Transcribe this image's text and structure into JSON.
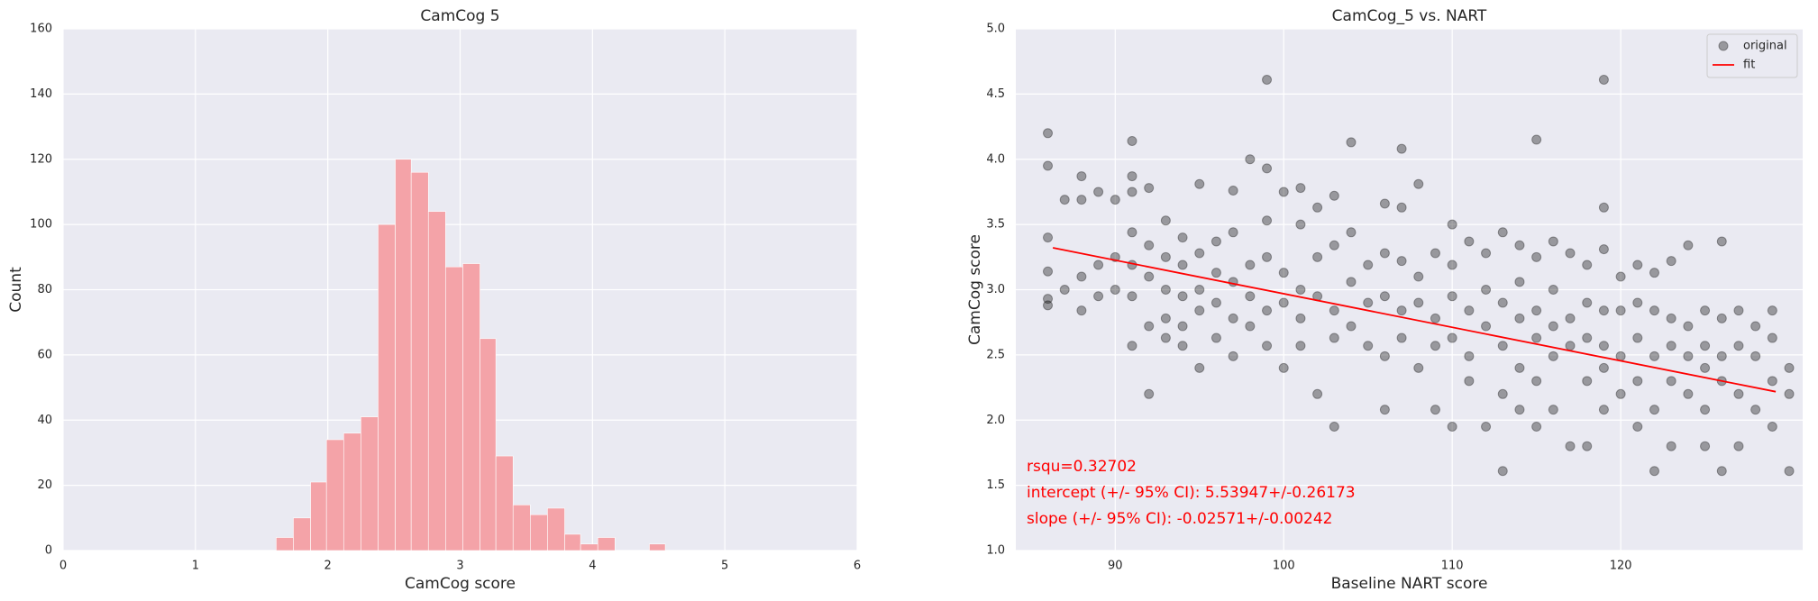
{
  "chart_data": [
    {
      "type": "histogram",
      "title": "CamCog 5",
      "x_label": "CamCog score",
      "y_label": "Count",
      "bins": [
        1.61,
        1.74,
        1.87,
        1.99,
        2.12,
        2.25,
        2.38,
        2.51,
        2.63,
        2.76,
        2.89,
        3.02,
        3.15,
        3.27,
        3.4,
        3.53,
        3.66,
        3.79,
        3.91,
        4.04,
        4.17,
        4.3,
        4.43,
        4.55
      ],
      "values": [
        4,
        10,
        21,
        34,
        36,
        41,
        100,
        120,
        116,
        104,
        87,
        88,
        65,
        29,
        14,
        11,
        13,
        5,
        2,
        4,
        0,
        0,
        2
      ],
      "color": "#f4a3a8",
      "xlim": [
        0,
        6
      ],
      "xticks": [
        0,
        1,
        2,
        3,
        4,
        5,
        6
      ],
      "ylim": [
        0,
        160
      ],
      "yticks": [
        0,
        20,
        40,
        60,
        80,
        100,
        120,
        140,
        160
      ],
      "grid": true
    },
    {
      "type": "scatter",
      "title": "CamCog_5 vs. NART",
      "x_label": "Baseline NART score",
      "y_label": "CamCog score",
      "xlim": [
        84.1,
        130.8
      ],
      "xticks": [
        90,
        100,
        110,
        120
      ],
      "ylim": [
        1,
        5
      ],
      "yticks": [
        {
          "value": 1,
          "label": "1.0"
        },
        1.5,
        {
          "value": 2,
          "label": "2.0"
        },
        2.5,
        {
          "value": 3,
          "label": "3.0"
        },
        3.5,
        {
          "value": 4,
          "label": "4.0"
        },
        4.5,
        {
          "value": 5,
          "label": "5.0"
        }
      ],
      "grid": true,
      "legend": "upper right",
      "annotations": [
        "rsqu=0.32702",
        "intercept (+/- 95% CI): 5.53947+/-0.26173",
        "slope (+/- 95% CI): -0.02571+/-0.00242"
      ],
      "annotation_color": "#ff0000",
      "series": [
        {
          "name": "original",
          "mode": "markers",
          "color": "#000000",
          "alpha": 0.35,
          "x": [
            86,
            86,
            86,
            86,
            86,
            86,
            87,
            87,
            88,
            88,
            88,
            88,
            89,
            89,
            89,
            90,
            90,
            90,
            91,
            91,
            91,
            91,
            91,
            91,
            91,
            92,
            92,
            92,
            92,
            92,
            93,
            93,
            93,
            93,
            93,
            94,
            94,
            94,
            94,
            94,
            95,
            95,
            95,
            95,
            95,
            96,
            96,
            96,
            96,
            97,
            97,
            97,
            97,
            97,
            98,
            98,
            98,
            98,
            99,
            99,
            99,
            99,
            99,
            99,
            100,
            100,
            100,
            100,
            101,
            101,
            101,
            101,
            101,
            102,
            102,
            102,
            102,
            103,
            103,
            103,
            103,
            103,
            104,
            104,
            104,
            104,
            105,
            105,
            105,
            106,
            106,
            106,
            106,
            106,
            107,
            107,
            107,
            107,
            107,
            108,
            108,
            108,
            108,
            109,
            109,
            109,
            109,
            110,
            110,
            110,
            110,
            110,
            111,
            111,
            111,
            111,
            112,
            112,
            112,
            112,
            113,
            113,
            113,
            113,
            113,
            114,
            114,
            114,
            114,
            114,
            115,
            115,
            115,
            115,
            115,
            115,
            116,
            116,
            116,
            116,
            116,
            117,
            117,
            117,
            117,
            118,
            118,
            118,
            118,
            118,
            119,
            119,
            119,
            119,
            119,
            119,
            119,
            120,
            120,
            120,
            120,
            121,
            121,
            121,
            121,
            121,
            122,
            122,
            122,
            122,
            122,
            123,
            123,
            123,
            123,
            123,
            124,
            124,
            124,
            124,
            125,
            125,
            125,
            125,
            125,
            126,
            126,
            126,
            126,
            126,
            127,
            127,
            127,
            127,
            128,
            128,
            128,
            129,
            129,
            129,
            129,
            130,
            130,
            130
          ],
          "values": [
            4.2,
            3.95,
            3.4,
            3.14,
            2.93,
            2.88,
            3.69,
            3.0,
            3.87,
            3.69,
            3.1,
            2.84,
            3.75,
            3.19,
            2.95,
            3.69,
            3.25,
            3.0,
            4.14,
            3.87,
            3.75,
            3.44,
            3.19,
            2.95,
            2.57,
            3.78,
            3.34,
            3.1,
            2.72,
            2.2,
            3.53,
            3.25,
            3.0,
            2.78,
            2.63,
            3.4,
            3.19,
            2.95,
            2.72,
            2.57,
            3.81,
            3.28,
            3.0,
            2.84,
            2.4,
            3.37,
            3.13,
            2.9,
            2.63,
            3.76,
            3.44,
            3.06,
            2.78,
            2.49,
            4.0,
            3.19,
            2.95,
            2.72,
            4.61,
            3.93,
            3.53,
            3.25,
            2.84,
            2.57,
            3.75,
            3.13,
            2.9,
            2.4,
            3.78,
            3.5,
            3.0,
            2.78,
            2.57,
            3.63,
            3.25,
            2.95,
            2.2,
            3.72,
            3.34,
            2.84,
            2.63,
            1.95,
            4.13,
            3.44,
            3.06,
            2.72,
            3.19,
            2.9,
            2.57,
            3.66,
            3.28,
            2.95,
            2.49,
            2.08,
            4.08,
            3.63,
            3.22,
            2.84,
            2.63,
            3.81,
            3.1,
            2.9,
            2.4,
            3.28,
            2.78,
            2.57,
            2.08,
            3.5,
            3.19,
            2.95,
            2.63,
            1.95,
            3.37,
            2.84,
            2.49,
            2.3,
            3.28,
            3.0,
            2.72,
            1.95,
            3.44,
            2.9,
            2.57,
            2.2,
            1.61,
            3.34,
            3.06,
            2.78,
            2.4,
            2.08,
            4.15,
            3.25,
            2.84,
            2.63,
            2.3,
            1.95,
            3.37,
            3.0,
            2.72,
            2.49,
            2.08,
            3.28,
            2.78,
            2.57,
            1.8,
            3.19,
            2.9,
            2.63,
            2.3,
            1.8,
            4.61,
            3.63,
            3.31,
            2.84,
            2.57,
            2.4,
            2.08,
            3.1,
            2.84,
            2.49,
            2.2,
            3.19,
            2.9,
            2.63,
            2.3,
            1.95,
            3.13,
            2.84,
            2.49,
            2.08,
            1.61,
            3.22,
            2.78,
            2.57,
            2.3,
            1.8,
            3.34,
            2.72,
            2.49,
            2.2,
            2.84,
            2.57,
            2.4,
            2.08,
            1.8,
            3.37,
            2.78,
            2.49,
            2.3,
            1.61,
            2.84,
            2.57,
            2.2,
            1.8,
            2.72,
            2.49,
            2.08,
            2.84,
            2.63,
            2.3,
            1.95,
            2.4,
            2.2,
            1.61
          ]
        },
        {
          "name": "fit",
          "mode": "line",
          "color": "#ff0000",
          "x": [
            86.3,
            129.2
          ],
          "values": [
            3.321,
            2.218
          ]
        }
      ]
    }
  ]
}
